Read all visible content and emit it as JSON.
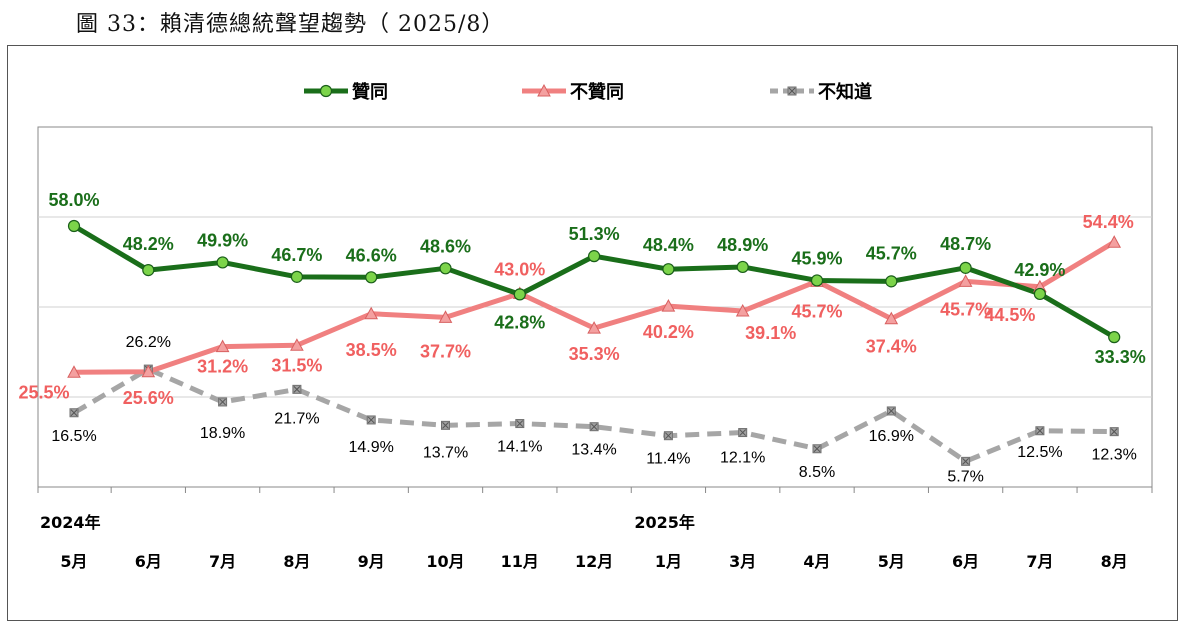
{
  "figure_title": "圖 33：賴清德總統聲望趨勢（ 2025/8）",
  "colors": {
    "approve": "#1a6e1a",
    "approve_marker": "#7cd44a",
    "disapprove": "#f08080",
    "disapprove_marker": "#f4a0a0",
    "unknown": "#a6a6a6",
    "unknown_marker": "#808080"
  },
  "chart_data": {
    "type": "line",
    "title": "",
    "xlabel": "",
    "ylabel": "",
    "x_year_labels": [
      "2024年",
      "",
      "",
      "",
      "",
      "",
      "",
      "",
      "2025年",
      "",
      "",
      "",
      "",
      "",
      ""
    ],
    "categories": [
      "5月",
      "6月",
      "7月",
      "8月",
      "9月",
      "10月",
      "11月",
      "12月",
      "1月",
      "3月",
      "4月",
      "5月",
      "6月",
      "7月",
      "8月"
    ],
    "ylim": [
      0,
      80
    ],
    "grid": true,
    "legend_position": "top",
    "series": [
      {
        "name": "贊同",
        "values": [
          58.0,
          48.2,
          49.9,
          46.7,
          46.6,
          48.6,
          42.8,
          51.3,
          48.4,
          48.9,
          45.9,
          45.7,
          48.7,
          42.9,
          33.3
        ],
        "labels": [
          "58.0%",
          "48.2%",
          "49.9%",
          "46.7%",
          "46.6%",
          "48.6%",
          "42.8%",
          "51.3%",
          "48.4%",
          "48.9%",
          "45.9%",
          "45.7%",
          "48.7%",
          "42.9%",
          "33.3%"
        ]
      },
      {
        "name": "不贊同",
        "values": [
          25.5,
          25.6,
          31.2,
          31.5,
          38.5,
          37.7,
          43.0,
          35.3,
          40.2,
          39.1,
          45.7,
          37.4,
          45.7,
          44.5,
          54.4
        ],
        "labels": [
          "25.5%",
          "25.6%",
          "31.2%",
          "31.5%",
          "38.5%",
          "37.7%",
          "43.0%",
          "35.3%",
          "40.2%",
          "39.1%",
          "45.7%",
          "37.4%",
          "45.7%",
          "44.5%",
          "54.4%"
        ]
      },
      {
        "name": "不知道",
        "values": [
          16.5,
          26.2,
          18.9,
          21.7,
          14.9,
          13.7,
          14.1,
          13.4,
          11.4,
          12.1,
          8.5,
          16.9,
          5.7,
          12.5,
          12.3
        ],
        "labels": [
          "16.5%",
          "26.2%",
          "18.9%",
          "21.7%",
          "14.9%",
          "13.7%",
          "14.1%",
          "13.4%",
          "11.4%",
          "12.1%",
          "8.5%",
          "16.9%",
          "5.7%",
          "12.5%",
          "12.3%"
        ]
      }
    ]
  }
}
